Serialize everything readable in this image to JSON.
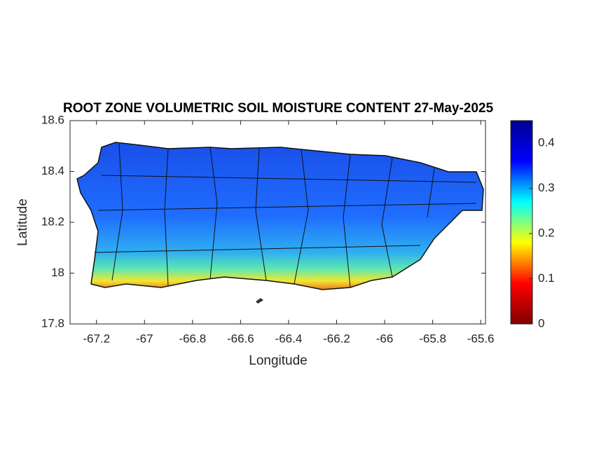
{
  "chart_data": {
    "type": "map",
    "title": "ROOT ZONE VOLUMETRIC SOIL MOISTURE CONTENT 27-May-2025",
    "xlabel": "Longitude",
    "ylabel": "Latitude",
    "xlim": [
      -67.31,
      -65.58
    ],
    "ylim": [
      17.8,
      18.6
    ],
    "xticks": [
      -67.2,
      -67,
      -66.8,
      -66.6,
      -66.4,
      -66.2,
      -66,
      -65.8,
      -65.6
    ],
    "yticks": [
      17.8,
      18,
      18.2,
      18.4,
      18.6
    ],
    "colormap": "jet",
    "colorbar": {
      "lim": [
        0,
        0.45
      ],
      "ticks": [
        0,
        0.1,
        0.2,
        0.3,
        0.4
      ]
    }
  }
}
